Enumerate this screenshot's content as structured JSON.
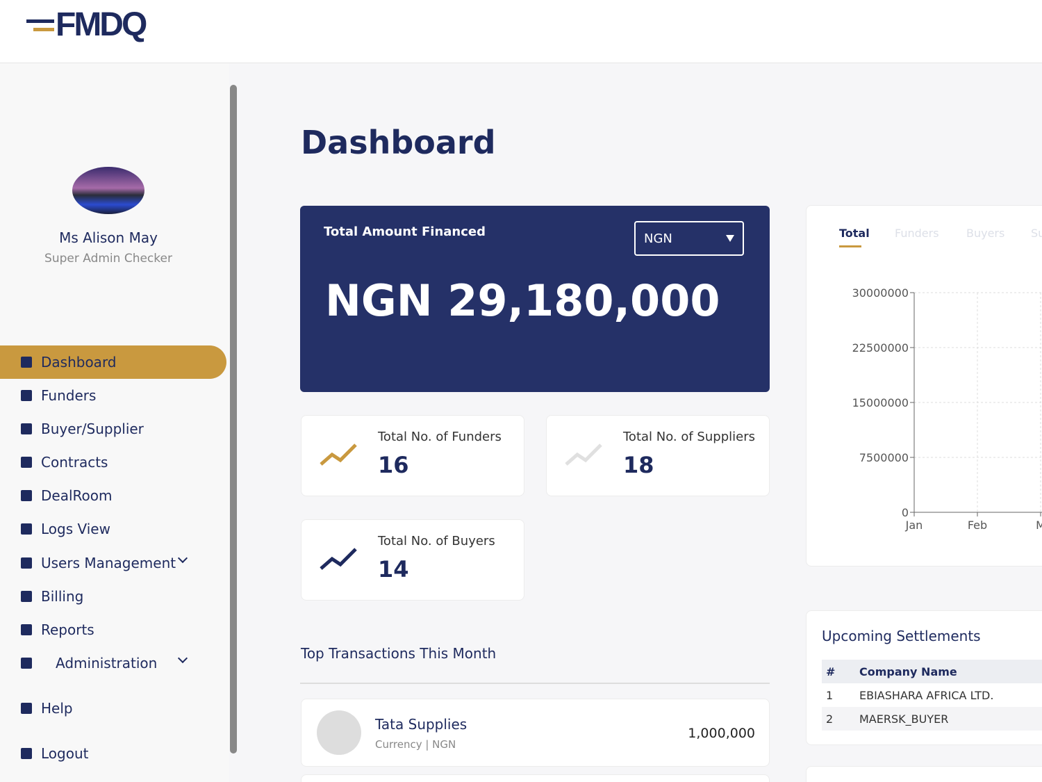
{
  "header": {
    "logo": "FMDQ"
  },
  "sidebar": {
    "user_name": "Ms Alison May",
    "user_role": "Super Admin Checker",
    "nav": [
      "Dashboard",
      "Funders",
      "Buyer/Supplier",
      "Contracts",
      "DealRoom",
      "Logs View",
      "Users Management",
      "Billing",
      "Reports",
      "Administration",
      "Help",
      "Logout"
    ]
  },
  "page_title": "Dashboard",
  "financed": {
    "label": "Total Amount Financed",
    "currency": "NGN",
    "amount": "NGN 29,180,000"
  },
  "stats": [
    {
      "label": "Total No. of Funders",
      "value": "16"
    },
    {
      "label": "Total No. of Suppliers",
      "value": "18"
    },
    {
      "label": "Total No. of Buyers",
      "value": "14"
    }
  ],
  "chart": {
    "tabs": [
      "Total",
      "Funders",
      "Buyers",
      "Su"
    ],
    "categories": [
      "Jan",
      "Feb",
      "M"
    ],
    "ylim": [
      0,
      30000000
    ],
    "yticks": [
      0,
      7500000,
      15000000,
      22500000,
      30000000
    ]
  },
  "transactions": {
    "title": "Top Transactions This Month",
    "rows": [
      {
        "name": "Tata Supplies",
        "sub": "Currency | NGN",
        "amount": "1,000,000"
      }
    ]
  },
  "settlements": {
    "title": "Upcoming Settlements",
    "columns": [
      "#",
      "Company Name"
    ],
    "rows": [
      [
        "1",
        "EBIASHARA AFRICA LTD."
      ],
      [
        "2",
        "MAERSK_BUYER"
      ]
    ]
  }
}
